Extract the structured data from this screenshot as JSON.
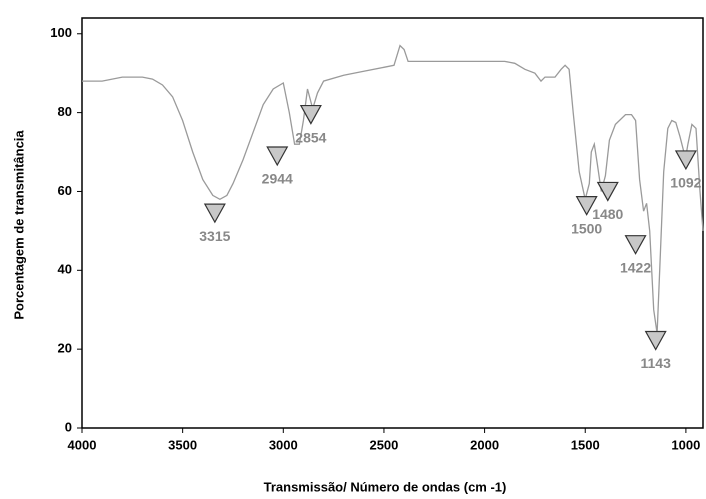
{
  "chart_data": {
    "type": "line",
    "y_label": "Porcentagem de transmitância",
    "x_label": "Transmissão/ Número de ondas (cm -1)",
    "xlim": [
      4000,
      915
    ],
    "ylim": [
      0,
      104
    ],
    "xticks": [
      4000,
      3500,
      3000,
      2500,
      2000,
      1500,
      1000
    ],
    "yticks": [
      0,
      20,
      40,
      60,
      80,
      100
    ],
    "x": [
      4000,
      3900,
      3800,
      3700,
      3650,
      3600,
      3550,
      3500,
      3450,
      3400,
      3350,
      3315,
      3280,
      3250,
      3200,
      3150,
      3100,
      3050,
      3000,
      2970,
      2944,
      2920,
      2900,
      2880,
      2854,
      2830,
      2800,
      2700,
      2600,
      2500,
      2450,
      2420,
      2400,
      2380,
      2300,
      2200,
      2100,
      2000,
      1900,
      1850,
      1800,
      1750,
      1720,
      1700,
      1650,
      1620,
      1600,
      1580,
      1560,
      1530,
      1500,
      1480,
      1470,
      1455,
      1440,
      1420,
      1400,
      1380,
      1350,
      1300,
      1270,
      1250,
      1230,
      1210,
      1195,
      1180,
      1160,
      1143,
      1130,
      1110,
      1090,
      1070,
      1050,
      1030,
      1010,
      1000,
      990,
      970,
      950,
      930,
      915
    ],
    "series": [
      {
        "color": "#9a9a9a",
        "values": [
          88,
          88,
          89,
          89,
          88.5,
          87,
          84,
          78,
          70,
          63,
          59,
          58,
          59,
          62,
          68,
          75,
          82,
          86,
          87.5,
          80,
          72,
          72,
          78,
          86,
          81,
          85,
          88,
          89.5,
          90.5,
          91.5,
          92,
          97,
          96,
          93,
          93,
          93,
          93,
          93,
          93,
          92.5,
          91,
          90,
          88,
          89,
          89,
          91,
          92,
          91,
          80,
          65,
          58,
          62,
          70,
          72,
          67,
          60,
          64,
          73,
          77,
          79.5,
          79.5,
          78,
          63,
          55,
          57,
          50,
          30,
          24,
          40,
          65,
          76,
          78,
          77.5,
          74,
          70,
          69,
          72,
          77,
          76,
          60,
          50
        ]
      }
    ],
    "annotations": [
      {
        "text": "3315",
        "x": 3340,
        "y": 54.5
      },
      {
        "text": "2944",
        "x": 3030,
        "y": 69
      },
      {
        "text": "2854",
        "x": 2863,
        "y": 79.5
      },
      {
        "text": "1500",
        "x": 1493,
        "y": 56.4
      },
      {
        "text": "1480",
        "x": 1388,
        "y": 60
      },
      {
        "text": "1422",
        "x": 1250,
        "y": 46.5
      },
      {
        "text": "1143",
        "x": 1150,
        "y": 22.2
      },
      {
        "text": "1092",
        "x": 1000,
        "y": 68
      }
    ]
  }
}
